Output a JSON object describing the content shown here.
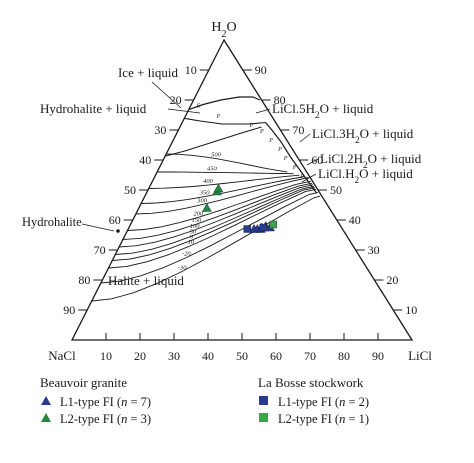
{
  "chart_data": {
    "type": "scatter",
    "title": "",
    "vertices": {
      "top": "H$_2$O",
      "left": "NaCl",
      "right": "LiCl"
    },
    "edge_ticks": {
      "left_edge": [
        "10",
        "20",
        "30",
        "40",
        "50",
        "60",
        "70",
        "80",
        "90"
      ],
      "right_edge": [
        "90",
        "80",
        "70",
        "60",
        "50",
        "40",
        "30",
        "20",
        "10"
      ],
      "bottom_edge": [
        "10",
        "20",
        "30",
        "40",
        "50",
        "60",
        "70",
        "80",
        "90"
      ]
    },
    "field_labels": [
      "Ice + liquid",
      "Hydrohalite + liquid",
      "Hydrohalite",
      "Halite + liquid",
      "LiCl.5H$_2$O + liquid",
      "LiCl.3H$_2$O + liquid",
      "LiCl.2H$_2$O + liquid",
      "LiCl.H$_2$O + liquid"
    ],
    "isotherms": [
      {
        "label": "-30",
        "w": 13
      },
      {
        "label": "-20",
        "w": 19
      },
      {
        "label": "-10",
        "w": 24
      },
      {
        "label": "0",
        "w": 26.5
      },
      {
        "label": "50",
        "w": 28.5
      },
      {
        "label": "100",
        "w": 31
      },
      {
        "label": "150",
        "w": 33.5
      },
      {
        "label": "200",
        "w": 36.5
      },
      {
        "label": "300",
        "w": 42
      },
      {
        "label": "350",
        "w": 45.5
      },
      {
        "label": "400",
        "w": 50.5
      },
      {
        "label": "450",
        "w": 56
      },
      {
        "label": "500",
        "w": 62
      }
    ],
    "point_labels": [
      "E",
      "P",
      "P",
      "P",
      "P",
      "P",
      "P",
      "P",
      "P"
    ],
    "series": [
      {
        "name": "L1-type FI (n = 7)",
        "group": "Beauvoir granite",
        "marker": "triangle",
        "color": "#2a3a8c",
        "points": [
          {
            "w": 37,
            "nacl": 26,
            "licl": 37
          },
          {
            "w": 37,
            "nacl": 25,
            "licl": 38
          },
          {
            "w": 37,
            "nacl": 24,
            "licl": 39
          },
          {
            "w": 37.5,
            "nacl": 23.5,
            "licl": 39
          },
          {
            "w": 37.5,
            "nacl": 22.5,
            "licl": 40
          },
          {
            "w": 38,
            "nacl": 22,
            "licl": 40
          },
          {
            "w": 37.5,
            "nacl": 21,
            "licl": 41.5
          }
        ]
      },
      {
        "name": "L2-type FI (n = 3)",
        "group": "Beauvoir granite",
        "marker": "triangle",
        "color": "#1f8a3a",
        "points": [
          {
            "w": 44,
            "nacl": 36,
            "licl": 20
          },
          {
            "w": 49.5,
            "nacl": 30,
            "licl": 20.5
          },
          {
            "w": 50.5,
            "nacl": 29,
            "licl": 20.5
          }
        ]
      },
      {
        "name": "L1-type FI (n = 2)",
        "group": "La Bosse stockwork",
        "marker": "square",
        "color": "#2a3a8c",
        "points": [
          {
            "w": 37,
            "nacl": 28,
            "licl": 35
          },
          {
            "w": 37.5,
            "nacl": 23,
            "licl": 39.5
          }
        ]
      },
      {
        "name": "L2-type FI (n = 1)",
        "group": "La Bosse stockwork",
        "marker": "square",
        "color": "#3aa64a",
        "points": [
          {
            "w": 38.5,
            "nacl": 19.5,
            "licl": 42
          }
        ]
      }
    ],
    "legend": {
      "group_left": "Beauvoir granite",
      "group_right": "La Bosse stockwork"
    }
  }
}
